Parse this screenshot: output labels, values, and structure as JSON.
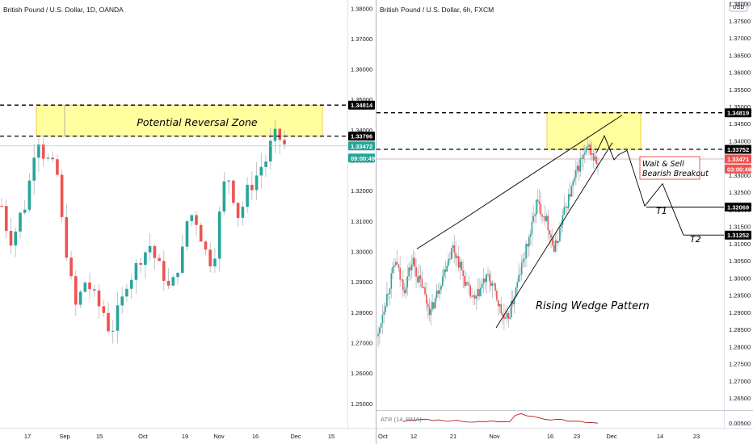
{
  "chart_data": [
    {
      "type": "candlestick",
      "title": "British Pound / U.S. Dollar, 1D, OANDA",
      "price_ticks": [
        1.38,
        1.37,
        1.36,
        1.35,
        1.34,
        1.33,
        1.32,
        1.31,
        1.3,
        1.29,
        1.28,
        1.27,
        1.26,
        1.25
      ],
      "tick_labels": [
        "1.38000",
        "1.37000",
        "1.36000",
        "1.35000",
        "1.34000",
        "1.33000",
        "1.32000",
        "1.31000",
        "1.30000",
        "1.29000",
        "1.28000",
        "1.27000",
        "1.26000",
        "1.25000"
      ],
      "ylim": [
        1.2425,
        1.3822
      ],
      "x_labels": [
        "17",
        "Sep",
        "15",
        "Oct",
        "19",
        "Nov",
        "16",
        "Dec",
        "15"
      ],
      "badges": [
        {
          "text": "1.34814",
          "value": 1.34814,
          "bg": "#000000",
          "fg": "#ffffff"
        },
        {
          "text": "1.33796",
          "value": 1.33796,
          "bg": "#000000",
          "fg": "#ffffff"
        },
        {
          "text": "1.33472",
          "value": 1.33472,
          "bg": "#26a69a",
          "fg": "#ffffff"
        },
        {
          "text": "09:00:49",
          "value": 1.33072,
          "bg": "#26a69a",
          "fg": "#ffffff"
        }
      ],
      "zone": {
        "label": "Potential Reversal Zone",
        "top": 1.34814,
        "bottom": 1.33796,
        "color": "#ffff9f"
      },
      "key_levels": [
        1.34814,
        1.33796
      ],
      "current_price": 1.33472,
      "path": [
        1.315,
        1.308,
        1.304,
        1.307,
        1.312,
        1.315,
        1.323,
        1.333,
        1.337,
        1.332,
        1.33,
        1.328,
        1.325,
        1.31,
        1.3,
        1.29,
        1.282,
        1.286,
        1.29,
        1.288,
        1.285,
        1.282,
        1.28,
        1.275,
        1.275,
        1.28,
        1.284,
        1.29,
        1.292,
        1.295,
        1.298,
        1.3,
        1.302,
        1.298,
        1.295,
        1.292,
        1.288,
        1.29,
        1.295,
        1.3,
        1.31,
        1.312,
        1.31,
        1.305,
        1.3,
        1.297,
        1.3,
        1.312,
        1.322,
        1.324,
        1.318,
        1.312,
        1.315,
        1.32,
        1.322,
        1.325,
        1.328,
        1.33,
        1.335,
        1.338,
        1.337,
        1.335
      ]
    },
    {
      "type": "candlestick",
      "title": "British Pound / U.S. Dollar, 6h, FXCM",
      "price_ticks": [
        1.38,
        1.375,
        1.37,
        1.365,
        1.36,
        1.355,
        1.35,
        1.345,
        1.34,
        1.335,
        1.33,
        1.325,
        1.32,
        1.315,
        1.31,
        1.305,
        1.3,
        1.295,
        1.29,
        1.285,
        1.28,
        1.275,
        1.27,
        1.265
      ],
      "tick_labels": [
        "1.38000",
        "1.37500",
        "1.37000",
        "1.36500",
        "1.36000",
        "1.35500",
        "1.35000",
        "1.34500",
        "1.34000",
        "1.33500",
        "1.33000",
        "1.32500",
        "1.32000",
        "1.31500",
        "1.31000",
        "1.30500",
        "1.30000",
        "1.29500",
        "1.29000",
        "1.28500",
        "1.28000",
        "1.27500",
        "1.27000",
        "1.26500"
      ],
      "ylim": [
        1.2615,
        1.3806
      ],
      "currency": "USD",
      "x_labels": [
        "Oct",
        "12",
        "21",
        "Nov",
        "16",
        "23",
        "Dec",
        "14",
        "23"
      ],
      "badges": [
        {
          "text": "1.34819",
          "value": 1.34819,
          "bg": "#000000",
          "fg": "#ffffff"
        },
        {
          "text": "1.33752",
          "value": 1.33752,
          "bg": "#000000",
          "fg": "#ffffff"
        },
        {
          "text": "1.33471",
          "value": 1.33471,
          "bg": "#ef5350",
          "fg": "#ffffff"
        },
        {
          "text": "03:00:49",
          "value": 1.3318,
          "bg": "#ef5350",
          "fg": "#ffffff"
        },
        {
          "text": "1.32069",
          "value": 1.32069,
          "bg": "#000000",
          "fg": "#ffffff"
        },
        {
          "text": "1.31252",
          "value": 1.31252,
          "bg": "#000000",
          "fg": "#ffffff"
        }
      ],
      "zone": {
        "top": 1.34819,
        "bottom": 1.33752,
        "color": "#ffff9f"
      },
      "key_levels": [
        1.34819,
        1.33752
      ],
      "current_price": 1.33471,
      "targets": [
        {
          "label": "T1",
          "value": 1.32069
        },
        {
          "label": "T2",
          "value": 1.31252
        }
      ],
      "annotations": {
        "pattern": "Rising Wedge Pattern",
        "callout_line1": "Wait & Sell",
        "callout_line2": "Bearish Breakout"
      },
      "indicator": {
        "label": "ATR (14, RMA)",
        "tick_label": "0.00500"
      },
      "path": [
        1.283,
        1.29,
        1.295,
        1.3,
        1.305,
        1.3,
        1.297,
        1.302,
        1.305,
        1.3,
        1.298,
        1.293,
        1.29,
        1.294,
        1.298,
        1.302,
        1.306,
        1.309,
        1.306,
        1.302,
        1.298,
        1.295,
        1.293,
        1.296,
        1.299,
        1.3,
        1.298,
        1.294,
        1.29,
        1.287,
        1.29,
        1.295,
        1.3,
        1.305,
        1.31,
        1.315,
        1.322,
        1.32,
        1.318,
        1.314,
        1.308,
        1.312,
        1.318,
        1.322,
        1.326,
        1.33,
        1.334,
        1.336,
        1.338,
        1.335,
        1.333
      ]
    }
  ]
}
